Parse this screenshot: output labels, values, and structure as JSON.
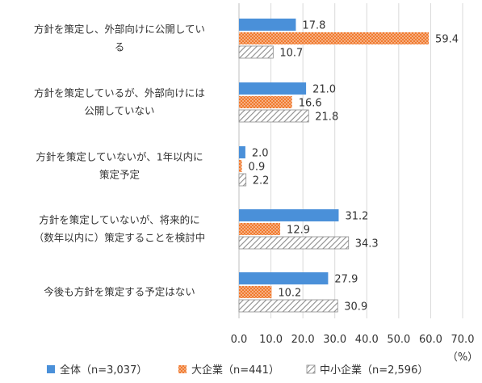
{
  "chart_data": {
    "type": "bar",
    "orientation": "horizontal",
    "categories": [
      [
        "方針を策定し、外部向けに公開してい",
        "る"
      ],
      [
        "方針を策定しているが、外部向けには",
        "公開していない"
      ],
      [
        "方針を策定していないが、1年以内に",
        "策定予定"
      ],
      [
        "方針を策定していないが、将来的に",
        "（数年以内に）策定することを検討中"
      ],
      [
        "今後も方針を策定する予定はない"
      ]
    ],
    "series": [
      {
        "name": "全体（n=3,037）",
        "values": [
          17.8,
          21.0,
          2.0,
          31.2,
          27.9
        ],
        "color": "#4a90d9",
        "pattern": "solid"
      },
      {
        "name": "大企業（n=441）",
        "values": [
          59.4,
          16.6,
          0.9,
          12.9,
          10.2
        ],
        "color": "#f07a2e",
        "pattern": "dots"
      },
      {
        "name": "中小企業（n=2,596）",
        "values": [
          10.7,
          21.8,
          2.2,
          34.3,
          30.9
        ],
        "color": "#a6a6a6",
        "pattern": "hatch"
      }
    ],
    "xlim": [
      0,
      70
    ],
    "xticks": [
      "0.0",
      "10.0",
      "20.0",
      "30.0",
      "40.0",
      "50.0",
      "60.0",
      "70.0"
    ],
    "unit": "（%）",
    "grid": true,
    "legend_position": "bottom"
  }
}
